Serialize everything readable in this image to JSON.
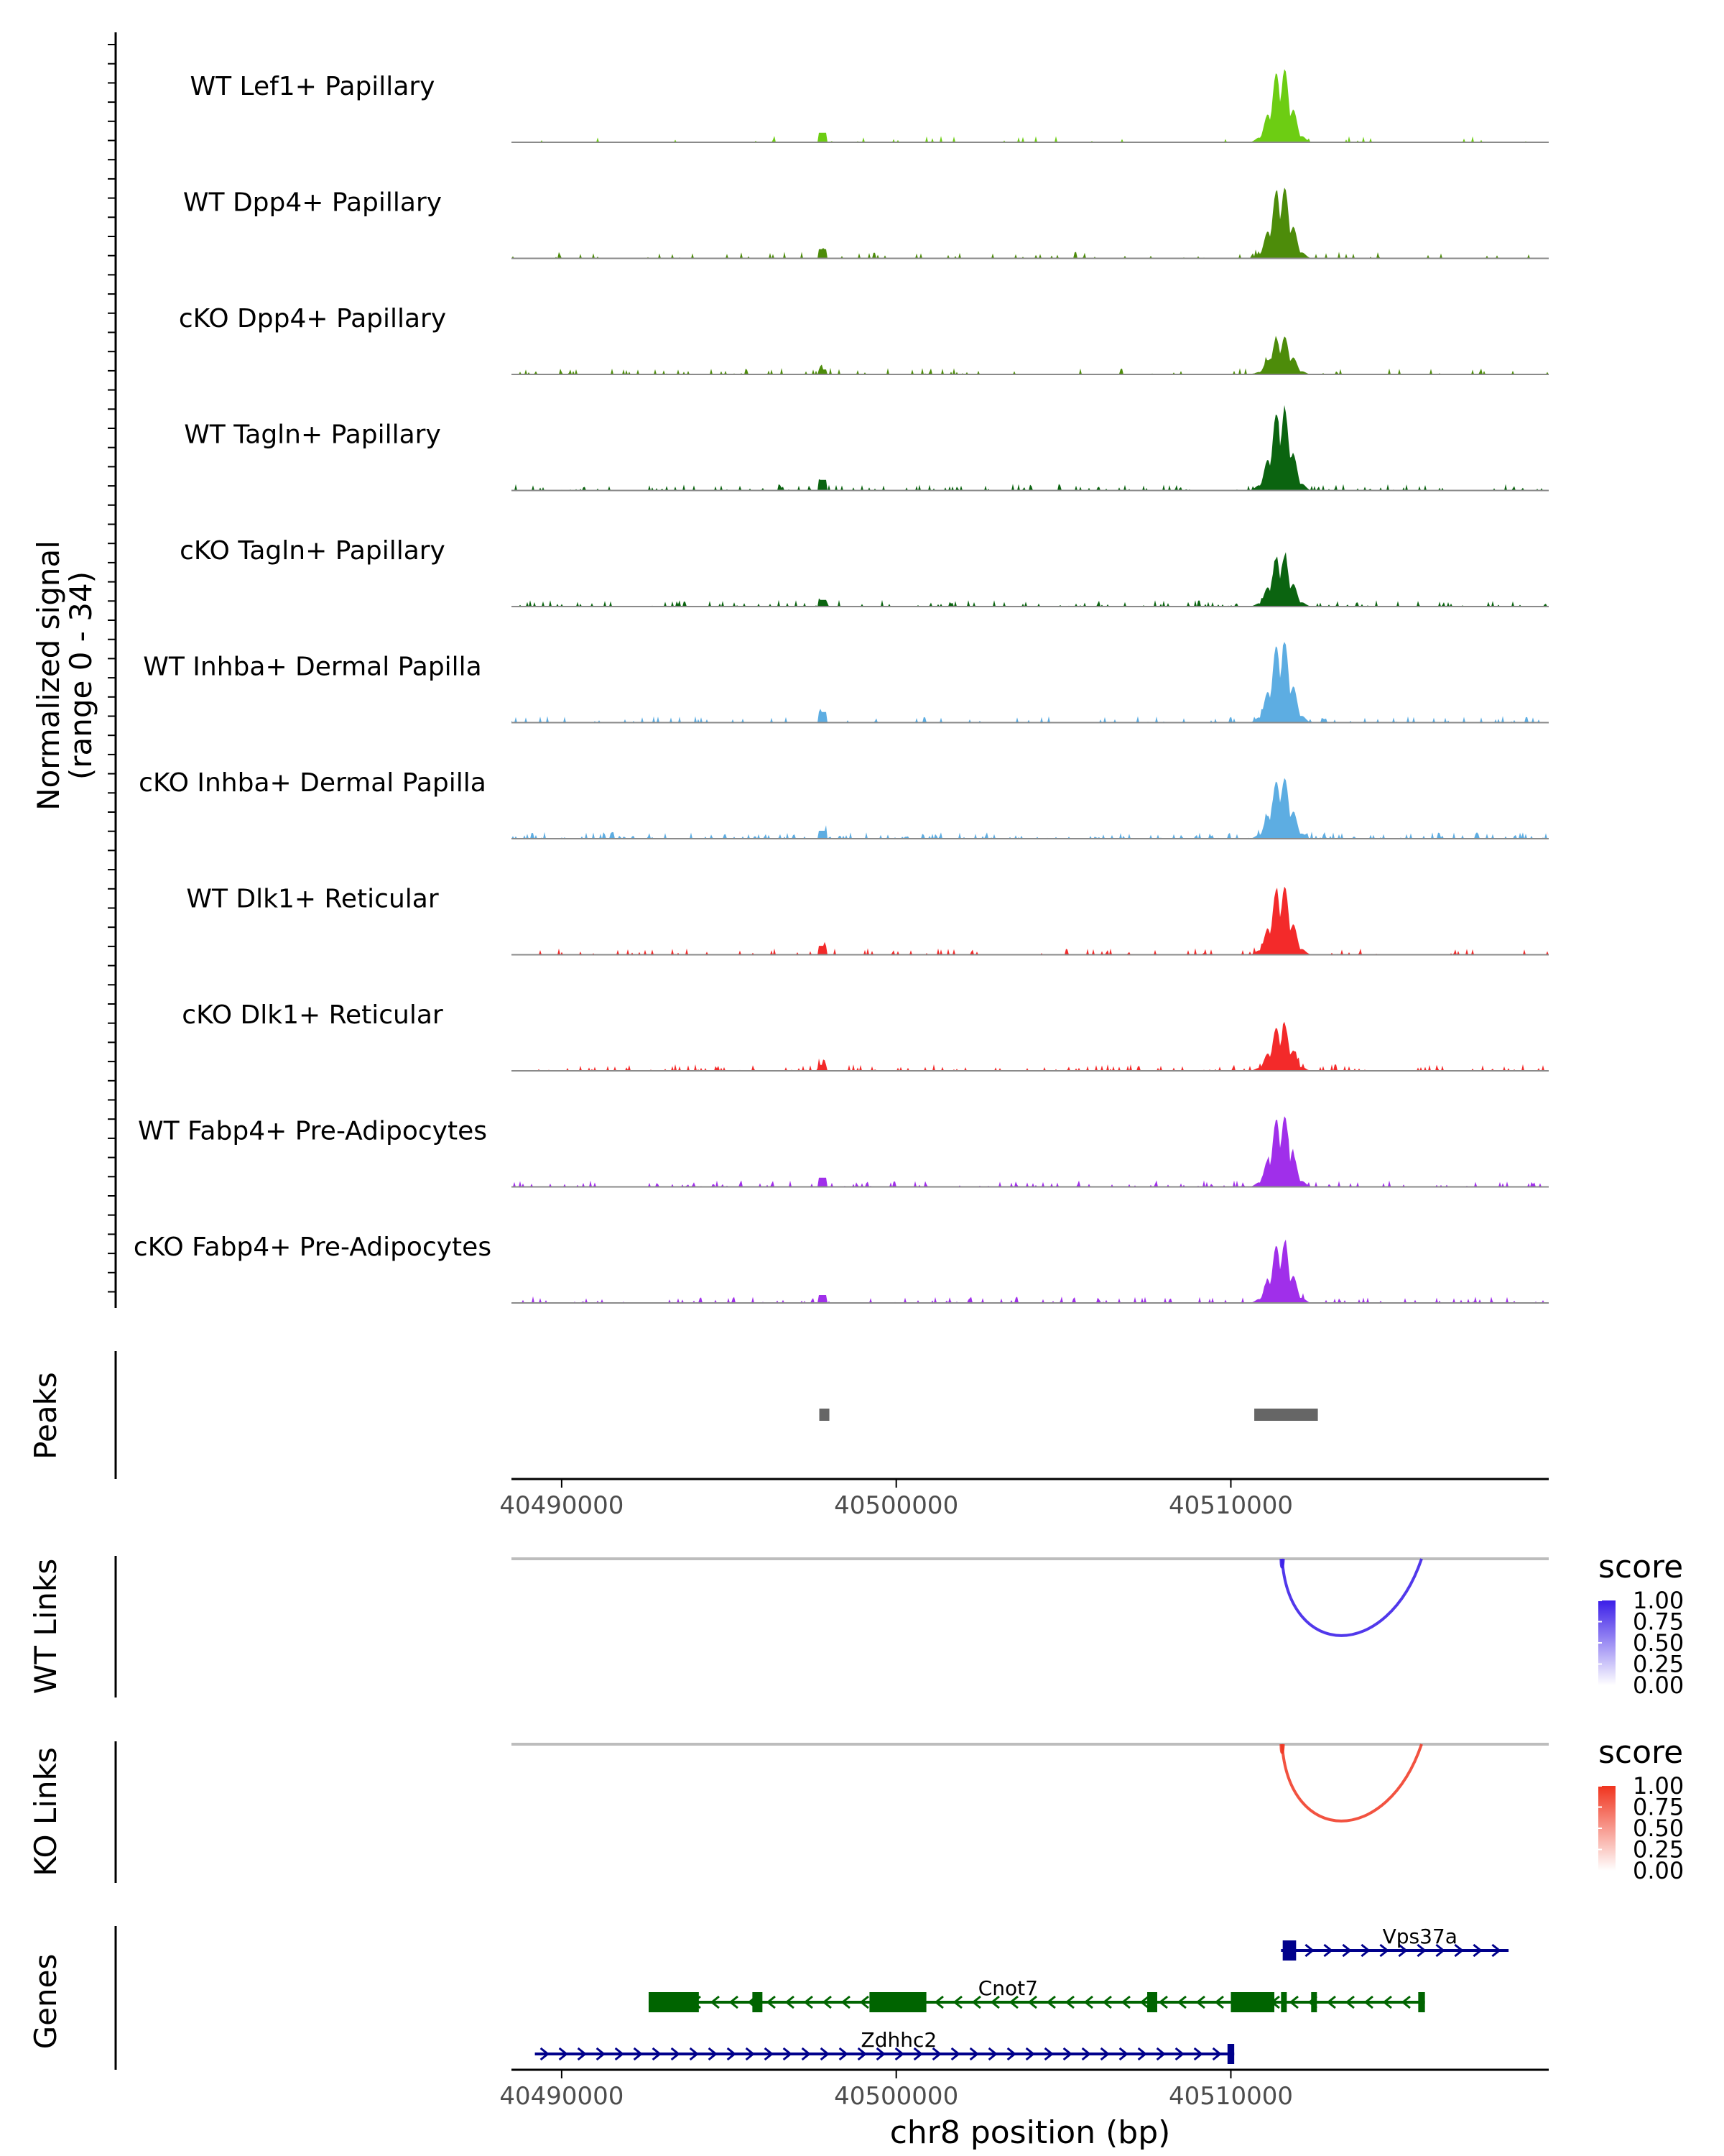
{
  "chart_data": {
    "type": "genome-browser-coverage",
    "region": {
      "chrom": "chr8",
      "start": 40488500,
      "end": 40519500
    },
    "coverage": {
      "ylabel_line1": "Normalized signal",
      "ylabel_line2": "(range 0 - 34)",
      "ylim": [
        0,
        34
      ],
      "tracks": [
        {
          "label": "WT Lef1+ Papillary",
          "color": "#6DCD13",
          "peak": 29,
          "noise": 1,
          "seed": 11
        },
        {
          "label": "WT Dpp4+ Papillary",
          "color": "#4D8C0A",
          "peak": 28,
          "noise": 2,
          "seed": 12
        },
        {
          "label": "cKO Dpp4+ Papillary",
          "color": "#4D8C0A",
          "peak": 15,
          "noise": 2,
          "seed": 13
        },
        {
          "label": "WT Tagln+ Papillary",
          "color": "#0B6410",
          "peak": 32,
          "noise": 3,
          "seed": 14
        },
        {
          "label": "cKO Tagln+ Papillary",
          "color": "#0B6410",
          "peak": 20,
          "noise": 3,
          "seed": 15
        },
        {
          "label": "WT Inhba+ Dermal Papilla",
          "color": "#5DADE2",
          "peak": 32,
          "noise": 2,
          "seed": 16
        },
        {
          "label": "cKO Inhba+ Dermal Papilla",
          "color": "#5DADE2",
          "peak": 24,
          "noise": 4,
          "seed": 17
        },
        {
          "label": "WT Dlk1+ Reticular",
          "color": "#F32A2A",
          "peak": 27,
          "noise": 2,
          "seed": 18
        },
        {
          "label": "cKO Dlk1+ Reticular",
          "color": "#F32A2A",
          "peak": 18,
          "noise": 3,
          "seed": 19
        },
        {
          "label": "WT Fabp4+ Pre-Adipocytes",
          "color": "#A02FEA",
          "peak": 28,
          "noise": 3,
          "seed": 20
        },
        {
          "label": "cKO Fabp4+ Pre-Adipocytes",
          "color": "#A02FEA",
          "peak": 24,
          "noise": 3,
          "seed": 21
        }
      ]
    },
    "peaks": {
      "label": "Peaks",
      "color": "#666666",
      "regions": [
        [
          40497700,
          40498000
        ],
        [
          40510700,
          40512600
        ]
      ]
    },
    "x_axis": {
      "ticks": [
        40490000,
        40500000,
        40510000
      ],
      "tick_labels": [
        "40490000",
        "40500000",
        "40510000"
      ],
      "xlabel": "chr8 position (bp)"
    },
    "links": [
      {
        "label": "WT Links",
        "legend_title": "score",
        "color_high": "#3B1EE8",
        "legend_ticks": [
          "1.00",
          "0.75",
          "0.50",
          "0.25",
          "0.00"
        ],
        "arcs": [
          {
            "start": 40511500,
            "end": 40511570,
            "score": 0.85
          },
          {
            "start": 40511530,
            "end": 40515700,
            "score": 0.85
          }
        ]
      },
      {
        "label": "KO Links",
        "legend_title": "score",
        "color_high": "#F0341E",
        "legend_ticks": [
          "1.00",
          "0.75",
          "0.50",
          "0.25",
          "0.00"
        ],
        "arcs": [
          {
            "start": 40511500,
            "end": 40511570,
            "score": 0.8
          },
          {
            "start": 40511530,
            "end": 40515700,
            "score": 0.8
          }
        ]
      }
    ],
    "genes": {
      "label": "Genes",
      "items": [
        {
          "name": "Vps37a",
          "start": 40511500,
          "end": 40518300,
          "strand": "+",
          "color": "#00008B",
          "exons": [
            [
              40511550,
              40511950
            ]
          ]
        },
        {
          "name": "Cnot7",
          "start": 40492600,
          "end": 40515800,
          "strand": "-",
          "color": "#006400",
          "exons": [
            [
              40492600,
              40494100
            ],
            [
              40495700,
              40496000
            ],
            [
              40499200,
              40500900
            ],
            [
              40507500,
              40507800
            ],
            [
              40510000,
              40511300
            ],
            [
              40511500,
              40511650
            ],
            [
              40512400,
              40512500
            ],
            [
              40515600,
              40515800
            ]
          ]
        },
        {
          "name": "Zdhhc2",
          "start": 40489200,
          "end": 40510100,
          "strand": "+",
          "color": "#00008B",
          "exons": [
            [
              40509900,
              40510100
            ]
          ]
        }
      ]
    }
  }
}
